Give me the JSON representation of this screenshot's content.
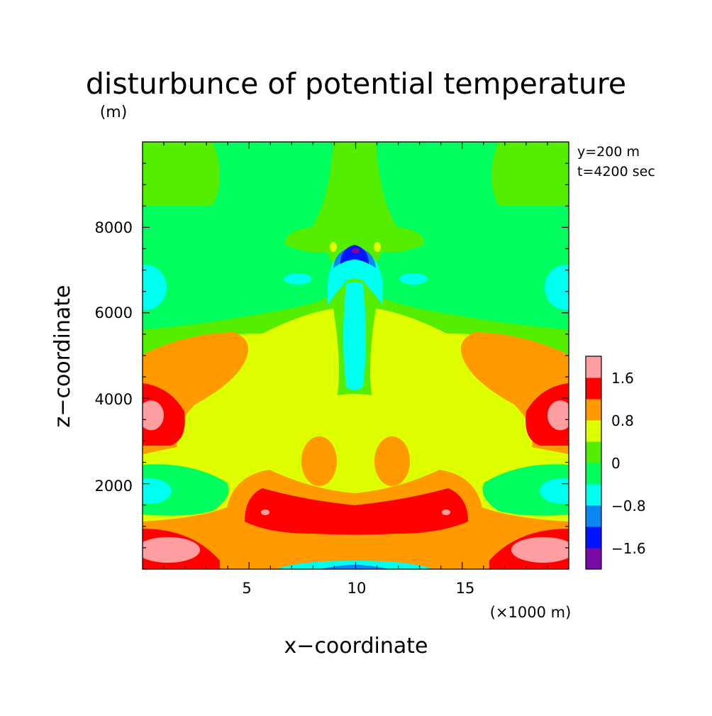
{
  "chart_data": {
    "type": "heatmap",
    "title": "disturbunce of potential temperature",
    "y_unit": "(m)",
    "xlabel": "x−coordinate",
    "ylabel": "z−coordinate",
    "x_unit": "(×1000 m)",
    "x_ticks": [
      "5",
      "10",
      "15"
    ],
    "y_ticks": [
      "2000",
      "4000",
      "6000",
      "8000"
    ],
    "xlim": [
      0,
      20
    ],
    "ylim": [
      0,
      10000
    ],
    "annotations": [
      "y=200 m",
      "t=4200 sec"
    ],
    "colorbar": {
      "labels": [
        "1.6",
        "0.8",
        "0",
        "−0.8",
        "−1.6"
      ],
      "levels": [
        {
          "min": -2.0,
          "max": -1.6,
          "color": "#7a0aa8"
        },
        {
          "min": -1.6,
          "max": -1.2,
          "color": "#0014ff"
        },
        {
          "min": -1.2,
          "max": -0.8,
          "color": "#0a86f0"
        },
        {
          "min": -0.8,
          "max": -0.4,
          "color": "#00ffef"
        },
        {
          "min": -0.4,
          "max": 0.0,
          "color": "#00ff5e"
        },
        {
          "min": 0.0,
          "max": 0.4,
          "color": "#55ee00"
        },
        {
          "min": 0.4,
          "max": 0.8,
          "color": "#ddff00"
        },
        {
          "min": 0.8,
          "max": 1.2,
          "color": "#ff9a00"
        },
        {
          "min": 1.2,
          "max": 1.6,
          "color": "#ff0000"
        },
        {
          "min": 1.6,
          "max": 2.0,
          "color": "#ff9ea0"
        }
      ]
    },
    "regions": [
      {
        "name": "surface-warm-left",
        "level": 9,
        "cx": 1.2,
        "cz": 450,
        "rx": 1.5,
        "rz": 300
      },
      {
        "name": "surface-warm-right",
        "level": 9,
        "cx": 18.8,
        "cz": 450,
        "rx": 1.5,
        "rz": 300
      },
      {
        "name": "mid-warm-left",
        "level": 9,
        "cx": 0.4,
        "cz": 3600,
        "rx": 0.6,
        "rz": 350
      },
      {
        "name": "mid-warm-right",
        "level": 9,
        "cx": 19.6,
        "cz": 3600,
        "rx": 0.6,
        "rz": 350
      },
      {
        "name": "upper-cold-core",
        "level": 0,
        "cx": 10,
        "cz": 7450,
        "rx": 0.2,
        "rz": 60
      }
    ]
  }
}
